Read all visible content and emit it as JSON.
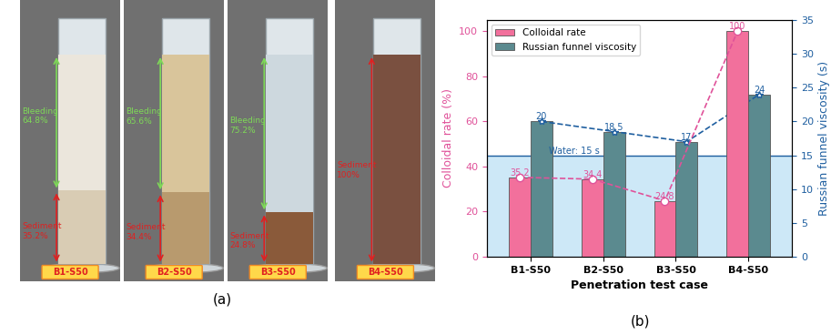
{
  "panel_a": {
    "label": "(a)",
    "cylinders": [
      {
        "name": "B1-S50",
        "sediment": 35.2,
        "sediment_text": "Sediment\n35.2%",
        "bleeding": 64.8,
        "bleeding_text": "Bleeding\n64.8%"
      },
      {
        "name": "B2-S50",
        "sediment": 34.4,
        "sediment_text": "Sediment\n34.4%",
        "bleeding": 65.6,
        "bleeding_text": "Bleeding\n65.6%"
      },
      {
        "name": "B3-S50",
        "sediment": 24.8,
        "sediment_text": "Sediment\n24.8%",
        "bleeding": 75.2,
        "bleeding_text": "Bleeding\n75.2%"
      },
      {
        "name": "B4-S50",
        "sediment": 100,
        "sediment_text": "Sediment\n100%"
      }
    ]
  },
  "chart_data": {
    "type": "bar",
    "label": "(b)",
    "x_label": "Penetration test case",
    "y_label": "Colloidal rate (%)",
    "y2_label": "Russian funnel viscosity (s)",
    "categories": [
      "B1-S50",
      "B2-S50",
      "B3-S50",
      "B4-S50"
    ],
    "series": [
      {
        "name": "Colloidal rate",
        "color": "#f2709c",
        "values": [
          35.2,
          34.4,
          24.8,
          100
        ],
        "marker": "o",
        "line_style": "dashed"
      },
      {
        "name": "Russian funnel viscosity",
        "color": "#5b8a8f",
        "values": [
          20,
          18.5,
          17,
          24
        ],
        "axis": "y2",
        "marker": "*",
        "line_style": "dashed"
      }
    ],
    "ylim": [
      0,
      105
    ],
    "yticks": [
      0,
      20,
      40,
      60,
      80,
      100
    ],
    "y2lim": [
      0,
      35
    ],
    "y2ticks": [
      0,
      5,
      10,
      15,
      20,
      25,
      30,
      35
    ],
    "annotations": [
      {
        "text": "Water: 15 s",
        "value": 15,
        "axis": "y2"
      }
    ],
    "legend": "upper left",
    "data_labels": true,
    "grid": false
  }
}
